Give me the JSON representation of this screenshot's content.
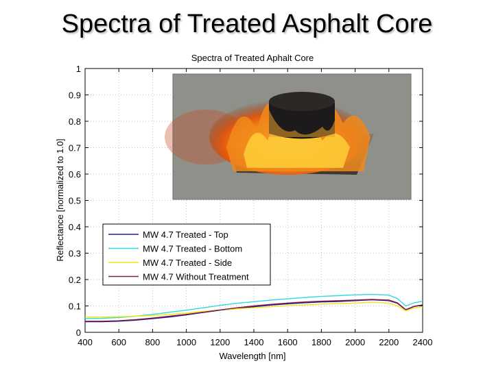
{
  "slide": {
    "title": "Spectra of Treated Asphalt Core"
  },
  "photo": {
    "description_icon": "flaming-asphalt-core-photo-icon"
  },
  "chart_data": {
    "type": "line",
    "title": "Spectra of Treated Aphalt Core",
    "xlabel": "Wavelength [nm]",
    "ylabel": "Reflectance [normalized to 1.0]",
    "xlim": [
      400,
      2400
    ],
    "ylim": [
      0,
      1
    ],
    "xticks": [
      400,
      600,
      800,
      1000,
      1200,
      1400,
      1600,
      1800,
      2000,
      2200,
      2400
    ],
    "yticks": [
      0,
      0.1,
      0.2,
      0.3,
      0.4,
      0.5,
      0.6,
      0.7,
      0.8,
      0.9,
      1
    ],
    "ytick_labels": [
      "0",
      "0.1",
      "0.2",
      "0.3",
      "0.4",
      "0.5",
      "0.6",
      "0.7",
      "0.8",
      "0.9",
      "1"
    ],
    "grid": true,
    "legend_position": "lower-left",
    "x": [
      400,
      500,
      600,
      700,
      800,
      900,
      1000,
      1100,
      1200,
      1300,
      1400,
      1500,
      1600,
      1700,
      1800,
      1900,
      2000,
      2100,
      2200,
      2250,
      2300,
      2350,
      2400
    ],
    "series": [
      {
        "name": "MW 4.7 Treated - Top",
        "color": "#1a1aa6",
        "values": [
          0.04,
          0.04,
          0.042,
          0.046,
          0.052,
          0.058,
          0.066,
          0.075,
          0.084,
          0.09,
          0.097,
          0.103,
          0.108,
          0.112,
          0.115,
          0.117,
          0.12,
          0.123,
          0.12,
          0.11,
          0.085,
          0.098,
          0.103
        ]
      },
      {
        "name": "MW 4.7 Treated - Bottom",
        "color": "#2fd9e0",
        "values": [
          0.052,
          0.053,
          0.056,
          0.061,
          0.068,
          0.076,
          0.084,
          0.093,
          0.102,
          0.11,
          0.116,
          0.122,
          0.127,
          0.132,
          0.136,
          0.139,
          0.142,
          0.144,
          0.141,
          0.128,
          0.1,
          0.112,
          0.118
        ]
      },
      {
        "name": "MW 4.7 Treated - Side",
        "color": "#f2e313",
        "values": [
          0.058,
          0.058,
          0.059,
          0.061,
          0.064,
          0.068,
          0.073,
          0.079,
          0.085,
          0.089,
          0.093,
          0.097,
          0.101,
          0.104,
          0.107,
          0.109,
          0.111,
          0.114,
          0.111,
          0.1,
          0.082,
          0.092,
          0.097
        ]
      },
      {
        "name": "MW 4.7 Without Treatment",
        "color": "#8a1a3a",
        "values": [
          0.042,
          0.042,
          0.044,
          0.048,
          0.054,
          0.061,
          0.068,
          0.076,
          0.085,
          0.093,
          0.1,
          0.106,
          0.111,
          0.115,
          0.118,
          0.12,
          0.122,
          0.125,
          0.122,
          0.112,
          0.086,
          0.099,
          0.104
        ]
      }
    ]
  }
}
